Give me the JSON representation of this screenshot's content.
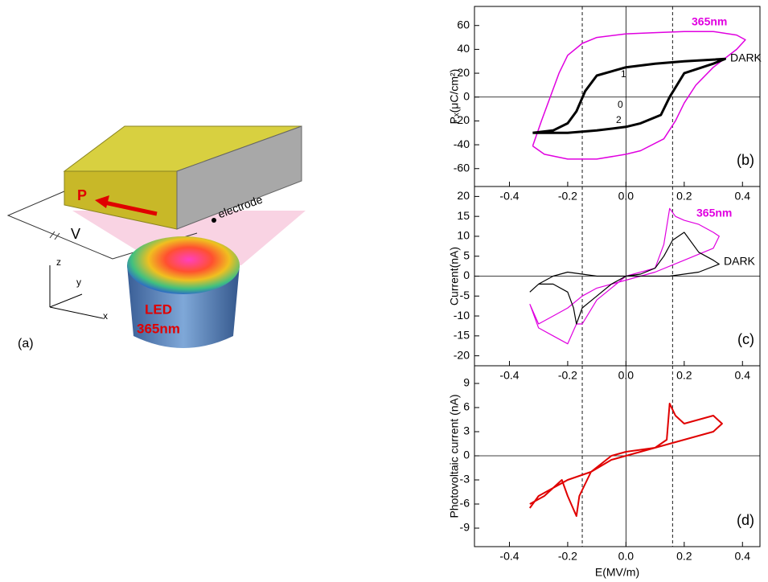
{
  "diagram": {
    "polarization": "P",
    "voltage": "V",
    "electrode": "electrode",
    "axes": [
      "z",
      "y",
      "x"
    ],
    "led": [
      "LED",
      "365nm"
    ],
    "label": "(a)"
  },
  "chart_data": [
    {
      "type": "line",
      "panel_label": "(b)",
      "ylabel": "Pₓ(μC/cm²)",
      "xlim": [
        -0.52,
        0.46
      ],
      "xticks": [
        -0.4,
        -0.2,
        {
          "value": 0,
          "label": "0.0"
        },
        0.2,
        0.4
      ],
      "ylim": [
        -75,
        76
      ],
      "yticks": [
        60,
        40,
        20,
        0,
        -20,
        -40,
        -60
      ],
      "vlines": [
        -0.15,
        0.16
      ],
      "annotations": [
        "1",
        "0",
        "2"
      ],
      "series": [
        {
          "name": "365nm",
          "color": "#e000e0",
          "width": 1.5,
          "x": [
            -0.32,
            -0.29,
            -0.26,
            -0.23,
            -0.2,
            -0.15,
            -0.1,
            0,
            0.1,
            0.2,
            0.3,
            0.38,
            0.41,
            0.38,
            0.3,
            0.24,
            0.2,
            0.17,
            0.13,
            0.05,
            0,
            -0.1,
            -0.2,
            -0.28,
            -0.32
          ],
          "values": [
            -41,
            -20,
            0,
            20,
            35,
            45,
            50,
            53,
            54,
            55,
            55,
            52,
            48,
            40,
            25,
            10,
            -5,
            -20,
            -35,
            -45,
            -48,
            -52,
            -52,
            -48,
            -41
          ]
        },
        {
          "name": "DARK",
          "color": "#000000",
          "width": 3,
          "x": [
            -0.32,
            -0.25,
            -0.2,
            -0.17,
            -0.14,
            -0.1,
            0,
            0.1,
            0.2,
            0.34,
            0.3,
            0.2,
            0.15,
            0.12,
            0.05,
            0,
            -0.1,
            -0.2,
            -0.32
          ],
          "values": [
            -30,
            -28,
            -22,
            -12,
            5,
            18,
            25,
            28,
            30,
            32,
            28,
            20,
            0,
            -15,
            -22,
            -25,
            -28,
            -30,
            -30
          ]
        }
      ]
    },
    {
      "type": "line",
      "panel_label": "(c)",
      "ylabel": "Current(nA)",
      "xlim": [
        -0.52,
        0.46
      ],
      "xticks": [
        -0.4,
        -0.2,
        {
          "value": 0,
          "label": "0.0"
        },
        0.2,
        0.4
      ],
      "ylim": [
        -22.5,
        22.5
      ],
      "yticks": [
        20,
        15,
        10,
        5,
        0,
        -5,
        -10,
        -15,
        -20
      ],
      "vlines": [
        -0.15,
        0.16
      ],
      "series": [
        {
          "name": "365nm",
          "color": "#e000e0",
          "width": 1.2,
          "x": [
            -0.33,
            -0.3,
            -0.25,
            -0.2,
            -0.17,
            -0.15,
            -0.1,
            0,
            0.1,
            0.13,
            0.15,
            0.17,
            0.2,
            0.25,
            0.3,
            0.32,
            0.3,
            0.2,
            0.1,
            0,
            -0.1,
            -0.15,
            -0.2,
            -0.25,
            -0.3,
            -0.33
          ],
          "values": [
            -7,
            -13,
            -15,
            -17,
            -12,
            -12,
            -6,
            0,
            2,
            8,
            17,
            15,
            14,
            13,
            11,
            10,
            7,
            4,
            1,
            -1,
            -3,
            -5,
            -8,
            -10,
            -12,
            -7
          ]
        },
        {
          "name": "DARK",
          "color": "#000000",
          "width": 1.2,
          "x": [
            -0.33,
            -0.3,
            -0.25,
            -0.2,
            -0.18,
            -0.17,
            -0.15,
            -0.1,
            -0.05,
            0,
            0.05,
            0.1,
            0.13,
            0.16,
            0.2,
            0.25,
            0.3,
            0.32,
            0.25,
            0.15,
            0.05,
            0,
            -0.1,
            -0.2,
            -0.25,
            -0.3,
            -0.33
          ],
          "values": [
            -4,
            -2,
            -2,
            -4,
            -8,
            -12,
            -8,
            -5,
            -2,
            0,
            0.5,
            2,
            5,
            9,
            11,
            6,
            4,
            3,
            1,
            0,
            0,
            0,
            0,
            1,
            0,
            -2,
            -4
          ]
        }
      ]
    },
    {
      "type": "line",
      "panel_label": "(d)",
      "ylabel": "Photovoltaic current (nA)",
      "xlabel": "E(MV/m)",
      "xlim": [
        -0.52,
        0.46
      ],
      "xticks": [
        -0.4,
        -0.2,
        {
          "value": 0,
          "label": "0.0"
        },
        0.2,
        0.4
      ],
      "ylim": [
        -11.3,
        11.2
      ],
      "yticks": [
        9,
        6,
        3,
        0,
        -3,
        -6,
        -9
      ],
      "vlines": [
        -0.15,
        0.16
      ],
      "series": [
        {
          "color": "#e00000",
          "width": 2,
          "x": [
            -0.33,
            -0.28,
            -0.22,
            -0.2,
            -0.17,
            -0.16,
            -0.12,
            -0.05,
            0,
            0.1,
            0.14,
            0.15,
            0.17,
            0.2,
            0.25,
            0.3,
            0.33,
            0.3,
            0.2,
            0.1,
            0,
            -0.05,
            -0.12,
            -0.2,
            -0.25,
            -0.3,
            -0.33
          ],
          "values": [
            -6,
            -5,
            -3,
            -5,
            -7.5,
            -5,
            -2,
            0,
            0.5,
            1,
            2,
            6.5,
            5,
            4,
            4.5,
            5,
            4,
            3,
            2,
            1,
            0,
            -0.5,
            -2,
            -3,
            -4,
            -5,
            -6.5
          ]
        }
      ]
    }
  ]
}
